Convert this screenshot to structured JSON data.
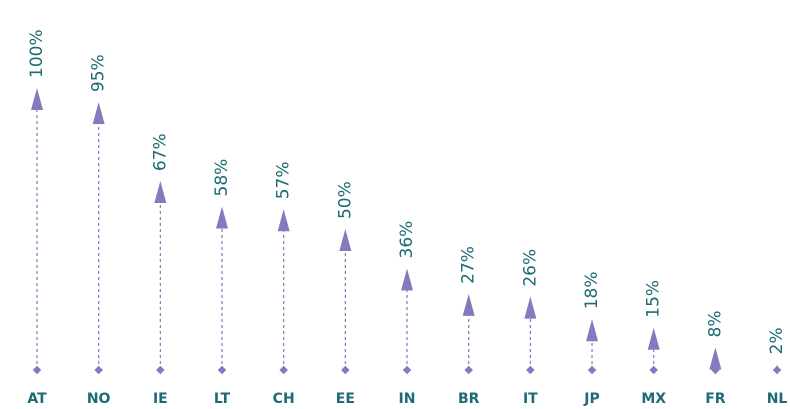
{
  "chart_data": {
    "type": "arrow",
    "categories": [
      "AT",
      "NO",
      "IE",
      "LT",
      "CH",
      "EE",
      "IN",
      "BR",
      "IT",
      "JP",
      "MX",
      "FR",
      "NL"
    ],
    "values": [
      100,
      95,
      67,
      58,
      57,
      50,
      36,
      27,
      26,
      18,
      15,
      8,
      2
    ],
    "value_labels": [
      "100%",
      "95%",
      "67%",
      "58%",
      "57%",
      "50%",
      "36%",
      "27%",
      "26%",
      "18%",
      "15%",
      "8%",
      "2%"
    ],
    "color": "#8878bd",
    "ylim": [
      0,
      100
    ]
  }
}
